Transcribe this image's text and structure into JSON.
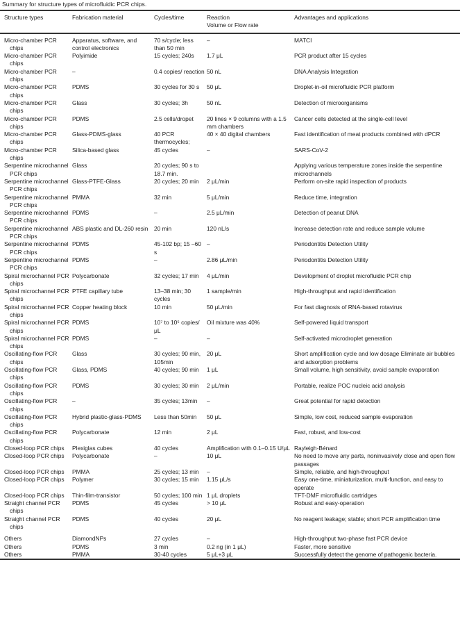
{
  "caption": "Summary for structure types of microfluidic PCR chips.",
  "columns": [
    "Structure types",
    "Fabrication material",
    "Cycles/time",
    "Reaction\nVolume or Flow rate",
    "Advantages and applications"
  ],
  "rows": [
    [
      "Micro-chamber PCR chips",
      "Apparatus, software, and control electronics",
      "70 s/cycle; less than 50 min",
      "–",
      "MATCI"
    ],
    [
      "Micro-chamber PCR chips",
      "Polyimide",
      "15 cycles; 240s",
      "1.7 μL",
      "PCR product after 15 cycles"
    ],
    [
      "Micro-chamber PCR chips",
      "–",
      "0.4 copies/ reaction",
      "50 nL",
      "DNA Analysis Integration"
    ],
    [
      "Micro-chamber PCR chips",
      "PDMS",
      "30 cycles for 30 s",
      "50 μL",
      "Droplet-in-oil microfluidic PCR platform"
    ],
    [
      "Micro-chamber PCR chips",
      "Glass",
      "30 cycles; 3h",
      "50 nL",
      "Detection of microorganisms"
    ],
    [
      "Micro-chamber PCR chips",
      "PDMS",
      "2.5 cells/dropet",
      "20 lines × 9 columns with a 1.5 mm chambers",
      "Cancer cells detected at the single-cell level"
    ],
    [
      "Micro-chamber PCR chips",
      "Glass-PDMS-glass",
      "40 PCR thermocycles;",
      "40 × 40 digital chambers",
      "Fast identification of meat products combined with dPCR"
    ],
    [
      "Micro-chamber PCR chips",
      "Silica-based glass",
      "45 cycles",
      "–",
      "SARS-CoV-2"
    ],
    [
      "Serpentine microchannel PCR chips",
      "Glass",
      "20 cycles; 90 s to 18.7 min.",
      "",
      "Applying various temperature zones inside the serpentine microchannels"
    ],
    [
      "Serpentine microchannel PCR chips",
      "Glass-PTFE-Glass",
      "20 cycles; 20 min",
      "2 μL/min",
      "Perform on-site rapid inspection of products"
    ],
    [
      "Serpentine microchannel PCR chips",
      "PMMA",
      "32 min",
      "5 μL/min",
      "Reduce time, integration"
    ],
    [
      "Serpentine microchannel PCR chips",
      "PDMS",
      "–",
      "2.5 μL/min",
      "Detection of peanut DNA"
    ],
    [
      "Serpentine microchannel PCR chips",
      "ABS plastic and DL-260 resin",
      "20 min",
      "120 nL/s",
      "Increase detection rate and reduce sample volume"
    ],
    [
      "Serpentine microchannel PCR chips",
      "PDMS",
      "45-102 bp; 15 –60 s",
      "–",
      "Periodontitis Detection Utility"
    ],
    [
      "Serpentine microchannel PCR chips",
      "PDMS",
      "–",
      "2.86 μL/min",
      "Periodontitis Detection Utility"
    ],
    [
      "Spiral microchannel PCR chips",
      "Polycarbonate",
      "32 cycles; 17 min",
      "4 μL/min",
      "Development of droplet microfluidic PCR chip"
    ],
    [
      "Spiral microchannel PCR chips",
      "PTFE capillary tube",
      "13–38 min; 30 cycles",
      "1 sample/min",
      "High-throughput and rapid identification"
    ],
    [
      "Spiral microchannel PCR chips",
      "Copper heating block",
      "10 min",
      "50 μL/min",
      "For fast diagnosis of RNA-based rotavirus"
    ],
    [
      "Spiral microchannel PCR chips",
      "PDMS",
      "10⁷ to 10⁵ copies/ μL",
      "Oil mixture was 40%",
      "Self-powered liquid transport"
    ],
    [
      "Spiral microchannel PCR chips",
      "PDMS",
      "–",
      "–",
      "Self-activated microdroplet generation"
    ],
    [
      "Oscillating-flow PCR chips",
      "Glass",
      "30 cycles; 90 min, 105min",
      "20 μL",
      "Short amplification cycle and low dosage Eliminate air bubbles and adsorption problems"
    ],
    [
      "Oscillating-flow PCR chips",
      "Glass, PDMS",
      "40 cycles; 90 min",
      "1 μL",
      "Small volume, high sensitivity, avoid sample evaporation"
    ],
    [
      "Oscillating-flow PCR chips",
      "PDMS",
      "30 cycles; 30 min",
      "2 μL/min",
      "Portable, realize POC nucleic acid analysis"
    ],
    [
      "Oscillating-flow PCR chips",
      "–",
      "35 cycles; 13min",
      "–",
      "Great potential for rapid detection"
    ],
    [
      "Oscillating-flow PCR chips",
      "Hybrid plastic-glass-PDMS",
      "Less than 50min",
      "50 μL",
      "Simple, low cost, reduced sample evaporation"
    ],
    [
      "Oscillating-flow PCR chips",
      "Polycarbonate",
      "12 min",
      "2 μL",
      "Fast, robust, and low-cost"
    ],
    [
      "Closed-loop PCR chips",
      "Plexiglas cubes",
      "40 cycles",
      "Amplification with 0.1–0.15 U/μL",
      "Rayleigh-Bénard"
    ],
    [
      "Closed-loop PCR chips",
      "Polycarbonate",
      "–",
      "10 μL",
      "No need to move any parts, noninvasively close and open flow passages"
    ],
    [
      "Closed-loop PCR chips",
      "PMMA",
      "25 cycles; 13 min",
      "–",
      "Simple, reliable, and high-throughput"
    ],
    [
      "Closed-loop PCR chips",
      "Polymer",
      "30 cycles; 15 min",
      "1.15 μL/s",
      "Easy one-time, miniaturization, multi-function, and easy to operate"
    ],
    [
      "Closed-loop PCR chips",
      "Thin-film-transistor",
      "50 cycles; 100 min",
      "1 μL droplets",
      "TFT-DMF microfluidic cartridges"
    ],
    [
      "Straight channel PCR chips",
      "PDMS",
      "45 cycles",
      "> 10 μL",
      "Robust and easy-operation"
    ],
    [
      "Straight channel PCR chips",
      "PDMS",
      "40 cycles",
      "20 μL",
      "No reagent leakage; stable; short PCR amplification time"
    ],
    [
      "Others",
      "DiamondNPs",
      "27 cycles",
      "–",
      "High-throughput two-phase fast PCR device"
    ],
    [
      "Others",
      "PDMS",
      "3 min",
      "0.2 ng (in 1 μL)",
      "Faster, more sensitive"
    ],
    [
      "Others",
      "PMMA",
      "30-40 cycles",
      "5 μL+3 μL",
      "Successfully detect the genome of pathogenic bacteria."
    ]
  ]
}
